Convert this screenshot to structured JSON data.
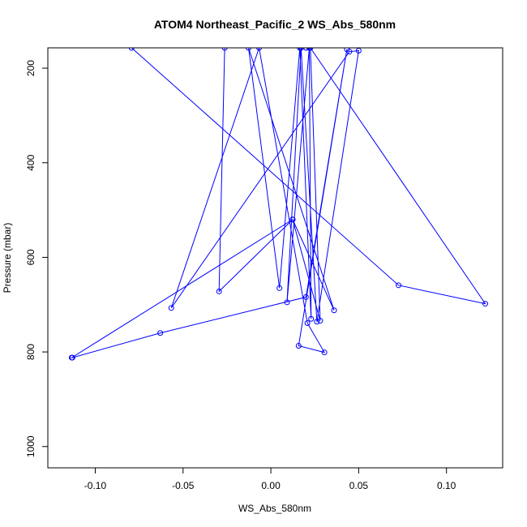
{
  "chart_data": {
    "type": "line",
    "title": "ATOM4 Northeast_Pacific_2 WS_Abs_580nm",
    "xlabel": "WS_Abs_580nm",
    "ylabel": "Pressure (mbar)",
    "xlim": [
      -0.127,
      0.132
    ],
    "ylim": [
      1045,
      157
    ],
    "y_reversed": true,
    "xticks": [
      -0.1,
      -0.05,
      0.0,
      0.05,
      0.1
    ],
    "xtick_labels": [
      "-0.10",
      "-0.05",
      "0.00",
      "0.05",
      "0.10"
    ],
    "yticks": [
      200,
      400,
      600,
      800,
      1000
    ],
    "ytick_labels": [
      "200",
      "400",
      "600",
      "800",
      "1000"
    ],
    "grid": false,
    "legend": "none",
    "series_color": "#0000ff",
    "series": [
      {
        "marker": "open-circle",
        "x": [
          -0.0793,
          0.0727,
          0.1221,
          0.0225,
          0.0281,
          0.0124,
          0.036,
          -0.0127,
          0.0049,
          0.0165,
          0.0229,
          0.0219,
          0.0092,
          0.0172,
          0.0262,
          0.05,
          0.0447,
          -0.0567,
          -0.0067,
          0.0208,
          0.0305,
          0.0158,
          0.0433,
          0.02,
          -0.063,
          -0.113,
          -0.1134,
          0.0124,
          -0.0295,
          -0.0263,
          0.0201
        ],
        "y": [
          157,
          659,
          698,
          157,
          734,
          520,
          712,
          157,
          665,
          157,
          730,
          157,
          695,
          157,
          736,
          163,
          165,
          707,
          157,
          739,
          801,
          787,
          160,
          684,
          760,
          812,
          812,
          520,
          672,
          157,
          157
        ]
      }
    ]
  }
}
